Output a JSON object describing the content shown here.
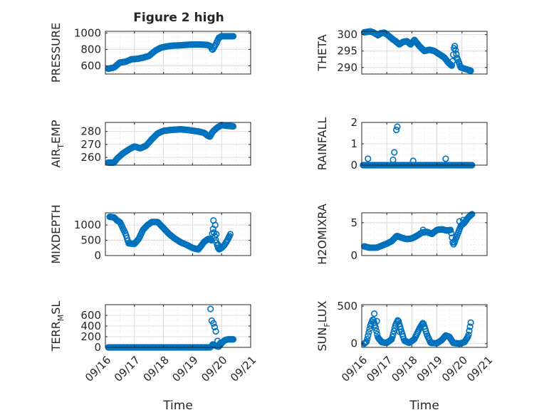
{
  "figure": {
    "title": "Figure 2 high"
  },
  "colors": {
    "marker": "#0072BD",
    "axis": "#262626"
  },
  "chart_data": [
    {
      "type": "scatter",
      "ylabel": "PRESSURE",
      "ylim": [
        500,
        1020
      ],
      "yticks": [
        600,
        800,
        1000
      ],
      "xlim": [
        0,
        5
      ],
      "xticks": [
        0,
        1,
        2,
        3,
        4,
        5
      ],
      "xticklabels": [
        "09/16",
        "09/17",
        "09/18",
        "09/19",
        "09/20",
        "09/21"
      ],
      "show_xticklabels": false,
      "xlabel": "",
      "profile": [
        [
          0.1,
          565
        ],
        [
          0.3,
          580
        ],
        [
          0.5,
          640
        ],
        [
          0.7,
          650
        ],
        [
          0.9,
          680
        ],
        [
          1.1,
          685
        ],
        [
          1.3,
          700
        ],
        [
          1.5,
          720
        ],
        [
          1.7,
          780
        ],
        [
          1.9,
          820
        ],
        [
          2.1,
          835
        ],
        [
          2.3,
          845
        ],
        [
          2.6,
          850
        ],
        [
          2.9,
          858
        ],
        [
          3.2,
          860
        ],
        [
          3.5,
          855
        ],
        [
          3.62,
          840
        ],
        [
          3.68,
          790
        ],
        [
          3.8,
          860
        ],
        [
          3.9,
          940
        ],
        [
          4.0,
          960
        ],
        [
          4.4,
          960
        ]
      ]
    },
    {
      "type": "scatter",
      "ylabel": "THETA",
      "ylim": [
        288,
        301
      ],
      "yticks": [
        290,
        295,
        300
      ],
      "xlim": [
        0,
        5
      ],
      "xticks": [
        0,
        1,
        2,
        3,
        4,
        5
      ],
      "xticklabels": [
        "09/16",
        "09/17",
        "09/18",
        "09/19",
        "09/20",
        "09/21"
      ],
      "show_xticklabels": false,
      "xlabel": "",
      "profile": [
        [
          0.1,
          300.7
        ],
        [
          0.35,
          301
        ],
        [
          0.5,
          300.5
        ],
        [
          0.65,
          299.8
        ],
        [
          0.75,
          300.4
        ],
        [
          0.9,
          300.6
        ],
        [
          1.05,
          299.8
        ],
        [
          1.2,
          298.8
        ],
        [
          1.35,
          298
        ],
        [
          1.5,
          297
        ],
        [
          1.65,
          297.8
        ],
        [
          1.8,
          298
        ],
        [
          1.95,
          297
        ],
        [
          2.1,
          298.4
        ],
        [
          2.3,
          296.5
        ],
        [
          2.5,
          295
        ],
        [
          2.7,
          295.4
        ],
        [
          2.9,
          295
        ],
        [
          3.1,
          294
        ],
        [
          3.3,
          293
        ],
        [
          3.45,
          291.5
        ],
        [
          3.6,
          290.5
        ],
        [
          3.7,
          297
        ],
        [
          3.8,
          293
        ],
        [
          3.95,
          290
        ],
        [
          4.15,
          289.5
        ],
        [
          4.35,
          289
        ]
      ]
    },
    {
      "type": "scatter",
      "ylabel": "AIR_TEMP",
      "ylim": [
        254,
        287
      ],
      "yticks": [
        260,
        270,
        280
      ],
      "xlim": [
        0,
        5
      ],
      "xticks": [
        0,
        1,
        2,
        3,
        4,
        5
      ],
      "xticklabels": [
        "09/16",
        "09/17",
        "09/18",
        "09/19",
        "09/20",
        "09/21"
      ],
      "show_xticklabels": false,
      "xlabel": "",
      "profile": [
        [
          0.1,
          256
        ],
        [
          0.3,
          256
        ],
        [
          0.4,
          259
        ],
        [
          0.6,
          263
        ],
        [
          0.8,
          266
        ],
        [
          1.0,
          268.5
        ],
        [
          1.2,
          267
        ],
        [
          1.4,
          269
        ],
        [
          1.6,
          274
        ],
        [
          1.8,
          278.5
        ],
        [
          2.0,
          280.5
        ],
        [
          2.3,
          281.3
        ],
        [
          2.6,
          281.7
        ],
        [
          2.9,
          281
        ],
        [
          3.2,
          280
        ],
        [
          3.4,
          279
        ],
        [
          3.5,
          277
        ],
        [
          3.6,
          276
        ],
        [
          3.7,
          280
        ],
        [
          3.85,
          283
        ],
        [
          4.0,
          285
        ],
        [
          4.15,
          284.5
        ],
        [
          4.4,
          284
        ]
      ]
    },
    {
      "type": "scatter",
      "ylabel": "RAINFALL",
      "ylim": [
        0,
        2
      ],
      "yticks": [
        0,
        1,
        2
      ],
      "xlim": [
        0,
        5
      ],
      "xticks": [
        0,
        1,
        2,
        3,
        4,
        5
      ],
      "xticklabels": [
        "09/16",
        "09/17",
        "09/18",
        "09/19",
        "09/20",
        "09/21"
      ],
      "show_xticklabels": false,
      "xlabel": "",
      "profile": [
        [
          0.05,
          0
        ],
        [
          4.4,
          0
        ]
      ],
      "extra": [
        [
          0.25,
          0.3
        ],
        [
          1.25,
          0.25
        ],
        [
          1.3,
          0.6
        ],
        [
          1.38,
          1.65
        ],
        [
          1.42,
          1.8
        ],
        [
          2.05,
          0.2
        ],
        [
          3.35,
          0.3
        ]
      ]
    },
    {
      "type": "scatter",
      "ylabel": "MIXDEPTH",
      "ylim": [
        0,
        1400
      ],
      "yticks": [
        0,
        500,
        1000
      ],
      "xlim": [
        0,
        5
      ],
      "xticks": [
        0,
        1,
        2,
        3,
        4,
        5
      ],
      "xticklabels": [
        "09/16",
        "09/17",
        "09/18",
        "09/19",
        "09/20",
        "09/21"
      ],
      "show_xticklabels": false,
      "xlabel": "",
      "profile": [
        [
          0.15,
          1270
        ],
        [
          0.3,
          1250
        ],
        [
          0.4,
          1150
        ],
        [
          0.5,
          1100
        ],
        [
          0.6,
          900
        ],
        [
          0.7,
          700
        ],
        [
          0.8,
          400
        ],
        [
          1.0,
          380
        ],
        [
          1.15,
          550
        ],
        [
          1.3,
          850
        ],
        [
          1.45,
          1000
        ],
        [
          1.6,
          1100
        ],
        [
          1.8,
          1100
        ],
        [
          2.0,
          900
        ],
        [
          2.2,
          700
        ],
        [
          2.4,
          550
        ],
        [
          2.6,
          430
        ],
        [
          2.8,
          350
        ],
        [
          3.0,
          250
        ],
        [
          3.2,
          200
        ],
        [
          3.4,
          450
        ],
        [
          3.55,
          550
        ],
        [
          3.65,
          500
        ],
        [
          3.7,
          900
        ],
        [
          3.8,
          500
        ],
        [
          3.9,
          200
        ],
        [
          4.0,
          250
        ],
        [
          4.1,
          350
        ],
        [
          4.2,
          500
        ],
        [
          4.3,
          700
        ]
      ],
      "extra": [
        [
          3.72,
          1150
        ],
        [
          3.78,
          1000
        ],
        [
          3.82,
          700
        ],
        [
          3.88,
          350
        ],
        [
          4.25,
          600
        ]
      ]
    },
    {
      "type": "scatter",
      "ylabel": "H2OMIXRA",
      "ylim": [
        0,
        6.5
      ],
      "yticks": [
        0,
        5
      ],
      "xlim": [
        0,
        5
      ],
      "xticks": [
        0,
        1,
        2,
        3,
        4,
        5
      ],
      "xticklabels": [
        "09/16",
        "09/17",
        "09/18",
        "09/19",
        "09/20",
        "09/21"
      ],
      "show_xticklabels": false,
      "xlabel": "",
      "profile": [
        [
          0.1,
          1.4
        ],
        [
          0.3,
          1.2
        ],
        [
          0.6,
          1.2
        ],
        [
          0.8,
          1.5
        ],
        [
          1.0,
          1.8
        ],
        [
          1.2,
          2.2
        ],
        [
          1.4,
          3.0
        ],
        [
          1.6,
          2.7
        ],
        [
          1.8,
          2.5
        ],
        [
          2.0,
          2.6
        ],
        [
          2.2,
          3.0
        ],
        [
          2.4,
          3.5
        ],
        [
          2.6,
          3.6
        ],
        [
          2.8,
          3.3
        ],
        [
          3.0,
          3.9
        ],
        [
          3.2,
          4.0
        ],
        [
          3.4,
          3.8
        ],
        [
          3.55,
          3.9
        ],
        [
          3.65,
          1.6
        ],
        [
          3.8,
          3.0
        ],
        [
          3.95,
          4.5
        ],
        [
          4.1,
          5.0
        ],
        [
          4.25,
          5.8
        ],
        [
          4.4,
          6.3
        ]
      ],
      "extra": [
        [
          2.45,
          3.9
        ],
        [
          3.7,
          2.0
        ],
        [
          3.9,
          5.2
        ],
        [
          4.05,
          5.4
        ]
      ]
    },
    {
      "type": "scatter",
      "ylabel": "TERR_MSL",
      "ylim": [
        0,
        800
      ],
      "yticks": [
        0,
        200,
        400,
        600
      ],
      "xlim": [
        0,
        5
      ],
      "xticks": [
        0,
        1,
        2,
        3,
        4,
        5
      ],
      "xticklabels": [
        "09/16",
        "09/17",
        "09/18",
        "09/19",
        "09/20",
        "09/21"
      ],
      "show_xticklabels": true,
      "xlabel": "Time",
      "profile": [
        [
          0.1,
          0
        ],
        [
          3.6,
          0
        ],
        [
          3.65,
          20
        ],
        [
          3.7,
          60
        ],
        [
          3.8,
          30
        ],
        [
          3.9,
          10
        ],
        [
          4.0,
          80
        ],
        [
          4.1,
          130
        ],
        [
          4.2,
          150
        ],
        [
          4.4,
          150
        ]
      ],
      "extra": [
        [
          3.62,
          720
        ],
        [
          3.66,
          500
        ],
        [
          3.72,
          450
        ],
        [
          3.76,
          380
        ],
        [
          3.8,
          300
        ],
        [
          3.86,
          120
        ],
        [
          3.95,
          80
        ]
      ]
    },
    {
      "type": "scatter",
      "ylabel": "SUN_FLUX",
      "ylim": [
        -50,
        520
      ],
      "yticks": [
        0,
        500
      ],
      "xlim": [
        0,
        5
      ],
      "xticks": [
        0,
        1,
        2,
        3,
        4,
        5
      ],
      "xticklabels": [
        "09/16",
        "09/17",
        "09/18",
        "09/19",
        "09/20",
        "09/21"
      ],
      "show_xticklabels": true,
      "xlabel": "Time",
      "profile": [
        [
          0.1,
          0
        ],
        [
          0.2,
          30
        ],
        [
          0.35,
          250
        ],
        [
          0.45,
          330
        ],
        [
          0.55,
          220
        ],
        [
          0.65,
          80
        ],
        [
          0.8,
          20
        ],
        [
          1.0,
          10
        ],
        [
          1.2,
          60
        ],
        [
          1.35,
          250
        ],
        [
          1.45,
          320
        ],
        [
          1.55,
          200
        ],
        [
          1.7,
          40
        ],
        [
          1.9,
          10
        ],
        [
          2.1,
          60
        ],
        [
          2.3,
          200
        ],
        [
          2.45,
          280
        ],
        [
          2.6,
          120
        ],
        [
          2.75,
          10
        ],
        [
          3.0,
          5
        ],
        [
          3.2,
          50
        ],
        [
          3.35,
          110
        ],
        [
          3.5,
          90
        ],
        [
          3.65,
          10
        ],
        [
          3.9,
          0
        ],
        [
          4.1,
          20
        ],
        [
          4.25,
          100
        ],
        [
          4.35,
          280
        ]
      ],
      "extra": [
        [
          0.5,
          400
        ],
        [
          0.6,
          300
        ],
        [
          1.5,
          160
        ]
      ]
    }
  ]
}
